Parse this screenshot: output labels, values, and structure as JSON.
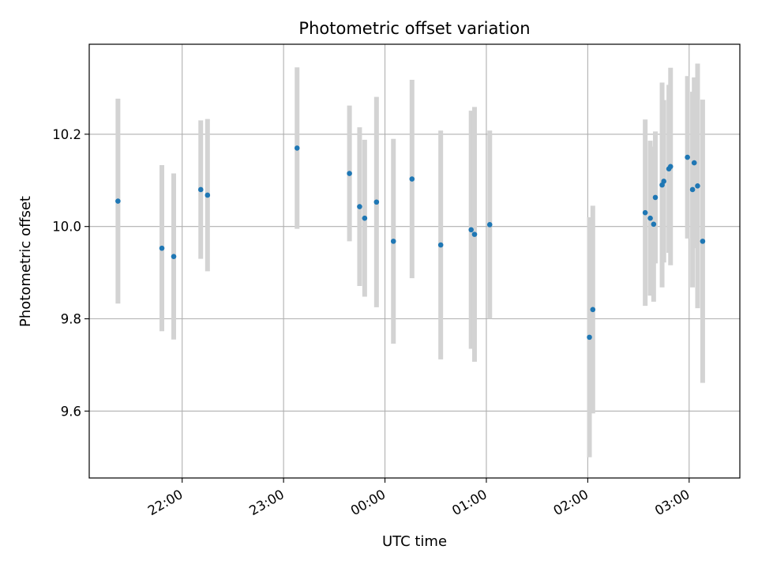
{
  "chart_data": {
    "type": "scatter",
    "title": "Photometric offset variation",
    "xlabel": "UTC time",
    "ylabel": "Photometric offset",
    "x_axis_type": "time",
    "xlim": [
      "21:05",
      "03:30"
    ],
    "ylim": [
      9.455,
      10.395
    ],
    "grid": true,
    "xticks": [
      "22:00",
      "23:00",
      "00:00",
      "01:00",
      "02:00",
      "03:00"
    ],
    "yticks": [
      "9.6",
      "9.8",
      "10.0",
      "10.2"
    ],
    "colors": {
      "points": "#1f77b4",
      "errorbars": "#d3d3d3",
      "grid": "#b0b0b0",
      "axes": "#000000"
    },
    "series": [
      {
        "x": [
          "21:22",
          "21:48",
          "21:55",
          "22:11",
          "22:15",
          "23:08",
          "23:39",
          "23:45",
          "23:48",
          "23:55",
          "00:05",
          "00:16",
          "00:33",
          "00:51",
          "00:53",
          "01:02",
          "02:01",
          "02:03",
          "02:34",
          "02:37",
          "02:39",
          "02:40",
          "02:44",
          "02:45",
          "02:48",
          "02:49",
          "02:59",
          "03:02",
          "03:03",
          "03:05",
          "03:08"
        ],
        "y": [
          10.055,
          9.953,
          9.935,
          10.08,
          10.068,
          10.17,
          10.115,
          10.043,
          10.018,
          10.053,
          9.968,
          10.103,
          9.96,
          9.993,
          9.983,
          10.004,
          9.76,
          9.82,
          10.03,
          10.018,
          10.005,
          10.063,
          10.09,
          10.098,
          10.125,
          10.13,
          10.15,
          10.08,
          10.138,
          10.088,
          9.968
        ],
        "yerr": [
          0.222,
          0.18,
          0.18,
          0.15,
          0.165,
          0.175,
          0.147,
          0.172,
          0.17,
          0.228,
          0.222,
          0.215,
          0.248,
          0.258,
          0.276,
          0.204,
          0.26,
          0.225,
          0.202,
          0.168,
          0.168,
          0.143,
          0.222,
          0.176,
          0.182,
          0.214,
          0.176,
          0.212,
          0.185,
          0.265,
          0.307
        ]
      }
    ]
  }
}
